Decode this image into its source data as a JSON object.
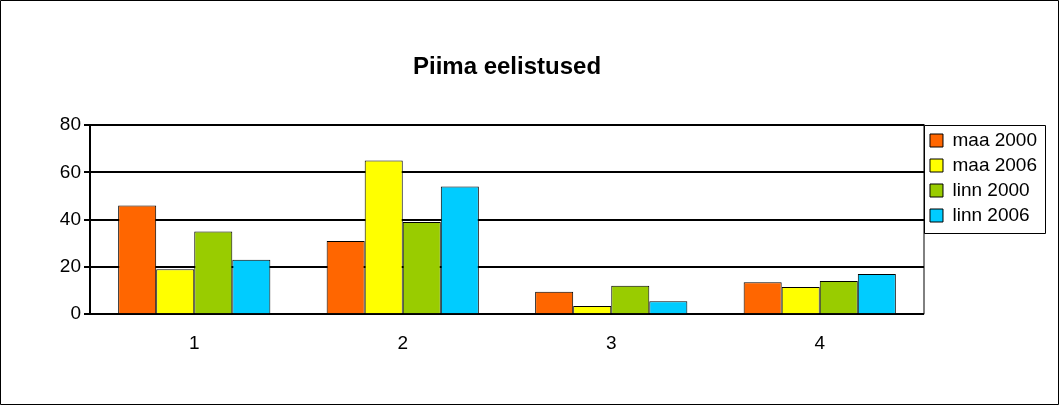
{
  "chart_data": {
    "type": "bar",
    "title": "Piima eelistused",
    "categories": [
      "1",
      "2",
      "3",
      "4"
    ],
    "series": [
      {
        "name": "maa 2000",
        "color": "#ff6600",
        "values": [
          46,
          31,
          9.5,
          13.5
        ]
      },
      {
        "name": "maa 2006",
        "color": "#ffff00",
        "values": [
          19,
          65,
          3.5,
          11.5
        ]
      },
      {
        "name": "linn 2000",
        "color": "#99cc00",
        "values": [
          35,
          39,
          12,
          14
        ]
      },
      {
        "name": "linn 2006",
        "color": "#00ccff",
        "values": [
          23,
          54,
          5.5,
          17
        ]
      }
    ],
    "ylim": [
      0,
      80
    ],
    "yticks": [
      0,
      20,
      40,
      60,
      80
    ],
    "grid": "y",
    "legend": "top right"
  }
}
